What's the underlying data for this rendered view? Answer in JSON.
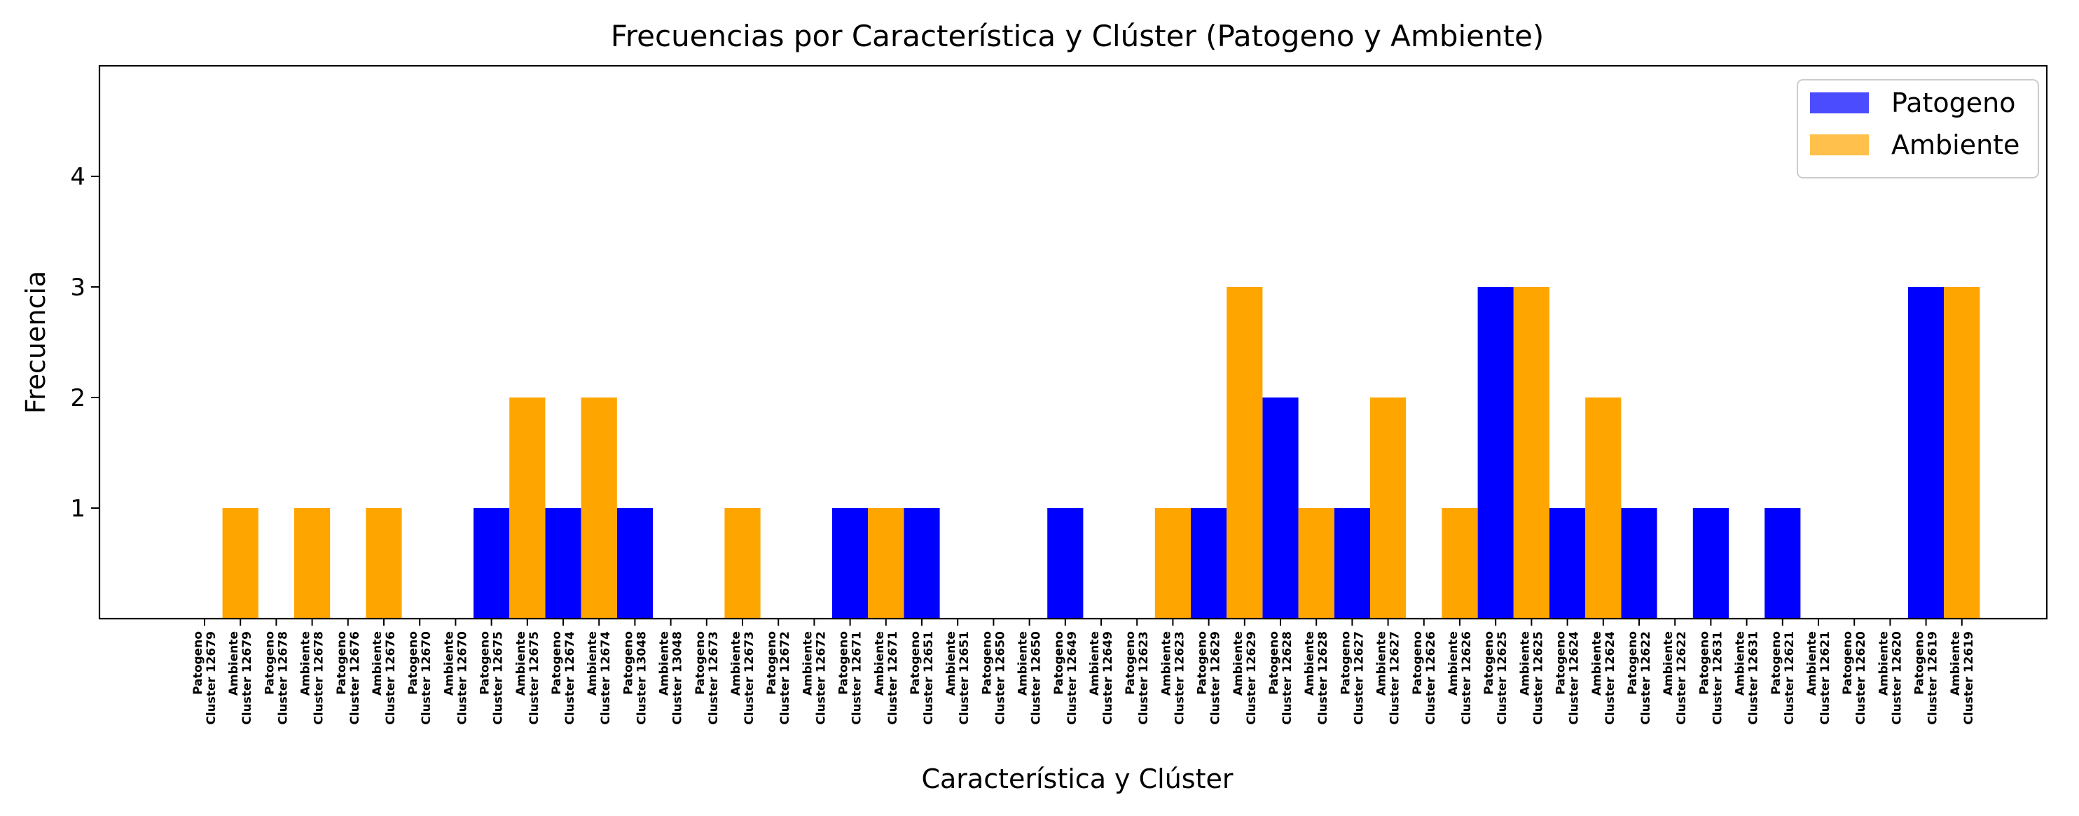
{
  "chart_data": {
    "type": "bar",
    "title": "Frecuencias por Característica y Clúster (Patogeno y Ambiente)",
    "xlabel": "Característica y Clúster",
    "ylabel": "Frecuencia",
    "ylim": [
      0,
      5
    ],
    "yticks": [
      1,
      2,
      3,
      4
    ],
    "grid": false,
    "legend_position": "top-right",
    "categories": [
      {
        "feature": "Patogeno",
        "cluster": "Cluster 12679"
      },
      {
        "feature": "Ambiente",
        "cluster": "Cluster 12679"
      },
      {
        "feature": "Patogeno",
        "cluster": "Cluster 12678"
      },
      {
        "feature": "Ambiente",
        "cluster": "Cluster 12678"
      },
      {
        "feature": "Patogeno",
        "cluster": "Cluster 12676"
      },
      {
        "feature": "Ambiente",
        "cluster": "Cluster 12676"
      },
      {
        "feature": "Patogeno",
        "cluster": "Cluster 12670"
      },
      {
        "feature": "Ambiente",
        "cluster": "Cluster 12670"
      },
      {
        "feature": "Patogeno",
        "cluster": "Cluster 12675"
      },
      {
        "feature": "Ambiente",
        "cluster": "Cluster 12675"
      },
      {
        "feature": "Patogeno",
        "cluster": "Cluster 12674"
      },
      {
        "feature": "Ambiente",
        "cluster": "Cluster 12674"
      },
      {
        "feature": "Patogeno",
        "cluster": "Cluster 13048"
      },
      {
        "feature": "Ambiente",
        "cluster": "Cluster 13048"
      },
      {
        "feature": "Patogeno",
        "cluster": "Cluster 12673"
      },
      {
        "feature": "Ambiente",
        "cluster": "Cluster 12673"
      },
      {
        "feature": "Patogeno",
        "cluster": "Cluster 12672"
      },
      {
        "feature": "Ambiente",
        "cluster": "Cluster 12672"
      },
      {
        "feature": "Patogeno",
        "cluster": "Cluster 12671"
      },
      {
        "feature": "Ambiente",
        "cluster": "Cluster 12671"
      },
      {
        "feature": "Patogeno",
        "cluster": "Cluster 12651"
      },
      {
        "feature": "Ambiente",
        "cluster": "Cluster 12651"
      },
      {
        "feature": "Patogeno",
        "cluster": "Cluster 12650"
      },
      {
        "feature": "Ambiente",
        "cluster": "Cluster 12650"
      },
      {
        "feature": "Patogeno",
        "cluster": "Cluster 12649"
      },
      {
        "feature": "Ambiente",
        "cluster": "Cluster 12649"
      },
      {
        "feature": "Patogeno",
        "cluster": "Cluster 12623"
      },
      {
        "feature": "Ambiente",
        "cluster": "Cluster 12623"
      },
      {
        "feature": "Patogeno",
        "cluster": "Cluster 12629"
      },
      {
        "feature": "Ambiente",
        "cluster": "Cluster 12629"
      },
      {
        "feature": "Patogeno",
        "cluster": "Cluster 12628"
      },
      {
        "feature": "Ambiente",
        "cluster": "Cluster 12628"
      },
      {
        "feature": "Patogeno",
        "cluster": "Cluster 12627"
      },
      {
        "feature": "Ambiente",
        "cluster": "Cluster 12627"
      },
      {
        "feature": "Patogeno",
        "cluster": "Cluster 12626"
      },
      {
        "feature": "Ambiente",
        "cluster": "Cluster 12626"
      },
      {
        "feature": "Patogeno",
        "cluster": "Cluster 12625"
      },
      {
        "feature": "Ambiente",
        "cluster": "Cluster 12625"
      },
      {
        "feature": "Patogeno",
        "cluster": "Cluster 12624"
      },
      {
        "feature": "Ambiente",
        "cluster": "Cluster 12624"
      },
      {
        "feature": "Patogeno",
        "cluster": "Cluster 12622"
      },
      {
        "feature": "Ambiente",
        "cluster": "Cluster 12622"
      },
      {
        "feature": "Patogeno",
        "cluster": "Cluster 12631"
      },
      {
        "feature": "Ambiente",
        "cluster": "Cluster 12631"
      },
      {
        "feature": "Patogeno",
        "cluster": "Cluster 12621"
      },
      {
        "feature": "Ambiente",
        "cluster": "Cluster 12621"
      },
      {
        "feature": "Patogeno",
        "cluster": "Cluster 12620"
      },
      {
        "feature": "Ambiente",
        "cluster": "Cluster 12620"
      },
      {
        "feature": "Patogeno",
        "cluster": "Cluster 12619"
      },
      {
        "feature": "Ambiente",
        "cluster": "Cluster 12619"
      }
    ],
    "series": [
      {
        "name": "Patogeno",
        "color": "#0000ff",
        "values": [
          0,
          0,
          0,
          0,
          0,
          0,
          0,
          0,
          1,
          0,
          1,
          0,
          1,
          0,
          0,
          0,
          0,
          0,
          1,
          0,
          1,
          0,
          0,
          0,
          1,
          0,
          0,
          0,
          1,
          0,
          2,
          0,
          1,
          0,
          0,
          0,
          3,
          0,
          1,
          0,
          1,
          0,
          1,
          0,
          1,
          0,
          0,
          0,
          3,
          0
        ]
      },
      {
        "name": "Ambiente",
        "color": "#ffa500",
        "values": [
          0,
          1,
          0,
          1,
          0,
          1,
          0,
          0,
          0,
          2,
          0,
          2,
          0,
          0,
          0,
          1,
          0,
          0,
          0,
          1,
          0,
          0,
          0,
          0,
          0,
          0,
          0,
          1,
          0,
          3,
          0,
          1,
          0,
          2,
          0,
          1,
          0,
          3,
          0,
          2,
          0,
          0,
          0,
          0,
          0,
          0,
          0,
          0,
          0,
          3
        ]
      }
    ]
  }
}
